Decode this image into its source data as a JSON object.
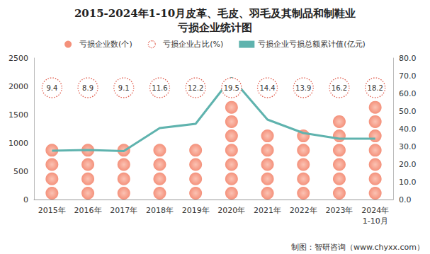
{
  "chart_data": {
    "type": "bar",
    "title": "2015-2024年1-10月皮革、毛皮、羽毛及其制品和制鞋业\n亏损企业统计图",
    "categories": [
      "2015年",
      "2016年",
      "2017年",
      "2018年",
      "2019年",
      "2020年",
      "2021年",
      "2022年",
      "2023年",
      "2024年\n1-10月"
    ],
    "series": [
      {
        "name": "亏损企业数(个)",
        "type": "bar",
        "marker": "circle",
        "color": "#f4917b",
        "values": [
          800,
          770,
          800,
          920,
          920,
          1650,
          1130,
          1100,
          1380,
          1600
        ]
      },
      {
        "name": "亏损企业占比(%)",
        "type": "scatter",
        "marker": "dotted_circle",
        "color": "#e05a4a",
        "data_labels": true,
        "values": [
          9.4,
          8.9,
          9.1,
          11.6,
          12.2,
          19.5,
          14.4,
          13.9,
          16.2,
          18.2
        ]
      },
      {
        "name": "亏损企业亏损总额累计值(亿元)",
        "type": "line",
        "axis": "y2",
        "color": "#5fb3ae",
        "line_style": "solid",
        "values": [
          27.6,
          28.0,
          27.4,
          40.4,
          42.8,
          68.8,
          45.2,
          37.6,
          34.4,
          34.4
        ]
      }
    ],
    "ylim": [
      0,
      2500
    ],
    "yticks": [
      0,
      500,
      1000,
      1500,
      2000,
      2500
    ],
    "y2lim": [
      0,
      80
    ],
    "y2ticks": [
      {
        "value": 0,
        "label": "0.0"
      },
      {
        "value": 10,
        "label": "10.0"
      },
      {
        "value": 20,
        "label": "20.0"
      },
      {
        "value": 30,
        "label": "30.0"
      },
      {
        "value": 40,
        "label": "40.0"
      },
      {
        "value": 50,
        "label": "50.0"
      },
      {
        "value": 60,
        "label": "60.0"
      },
      {
        "value": 70,
        "label": "70.0"
      },
      {
        "value": 80,
        "label": "80.0"
      }
    ],
    "grid": false,
    "legend": "top",
    "annotations": [
      "制图：智研咨询（www.chyxx.com）"
    ]
  }
}
